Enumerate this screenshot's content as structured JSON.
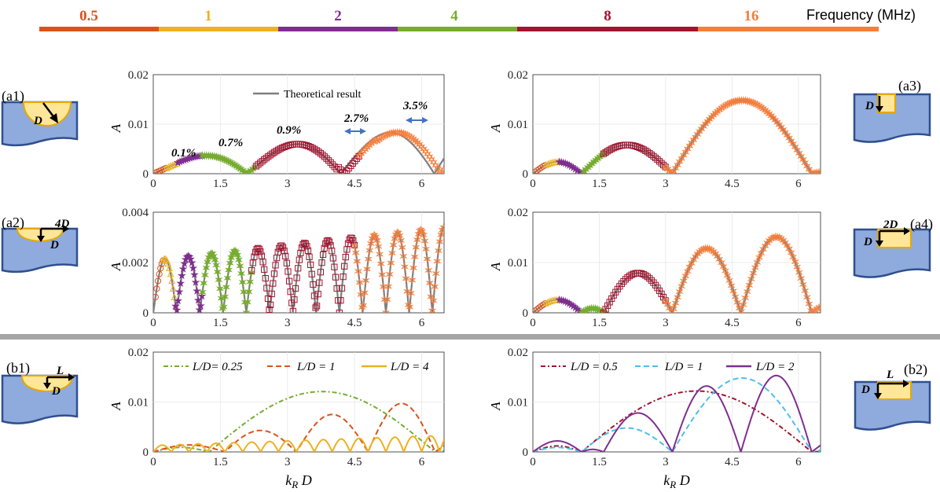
{
  "colors": {
    "f05": "#d9531e",
    "f1": "#edb120",
    "f2": "#7e2f8e",
    "f4": "#77ac30",
    "f8": "#a2142f",
    "f16": "#f47e3c",
    "theory": "#7f7f7f",
    "arrow": "#4472c4",
    "sample_fill": "#8faadc",
    "sample_edge": "#2f4f8f",
    "coat_fill": "#ffe699",
    "coat_edge": "#e6a800"
  },
  "frequency_bar": {
    "title": "Frequency (MHz)",
    "labels": [
      "0.5",
      "1",
      "2",
      "4",
      "8",
      "16"
    ]
  },
  "diagrams": {
    "a1": {
      "label": "(a1)",
      "dim": "D"
    },
    "a2": {
      "label": "(a2)",
      "dim1": "4D",
      "dim2": "D"
    },
    "a3": {
      "label": "(a3)",
      "dim": "D"
    },
    "a4": {
      "label": "(a4)",
      "dim1": "2D",
      "dim2": "D"
    },
    "b1": {
      "label": "(b1)",
      "dim1": "L",
      "dim2": "D"
    },
    "b2": {
      "label": "(b2)",
      "dim1": "L",
      "dim2": "D"
    }
  },
  "annotations_a1": {
    "legend_theory": "Theoretical result",
    "errors": [
      "0.1%",
      "0.7%",
      "0.9%",
      "2.7%",
      "3.5%"
    ]
  },
  "legends_b": {
    "b1": [
      "L/D= 0.25",
      "L/D = 1",
      "L/D = 4"
    ],
    "b2": [
      "L/D = 0.5",
      "L/D = 1",
      "L/D = 2"
    ]
  },
  "chart_data": [
    {
      "id": "a1",
      "type": "line",
      "xlabel": "",
      "ylabel": "A",
      "xlim": [
        0,
        6.5
      ],
      "ylim": [
        0,
        0.02
      ],
      "xticks": [
        "0",
        "1.5",
        "3",
        "4.5",
        "6"
      ],
      "yticks": [
        "0",
        "0.01",
        "0.02"
      ],
      "series": [
        {
          "name": "Theoretical result",
          "model": "abs_sin",
          "amp_start": 0.0024,
          "amp_end": 0.0097,
          "period": 2.094
        },
        {
          "freq": "0.5",
          "x": [
            0.05,
            0.3
          ],
          "marker": "circle"
        },
        {
          "freq": "1",
          "x": [
            0.3,
            0.55
          ],
          "marker": "triangle"
        },
        {
          "freq": "2",
          "x": [
            0.55,
            1.1
          ],
          "marker": "star"
        },
        {
          "freq": "4",
          "x": [
            1.1,
            2.3
          ],
          "marker": "star6"
        },
        {
          "freq": "8",
          "x": [
            2.3,
            4.6
          ],
          "marker": "square"
        },
        {
          "freq": "16",
          "x": [
            4.6,
            6.5
          ],
          "marker": "hexagram"
        }
      ]
    },
    {
      "id": "a2",
      "type": "line",
      "xlabel": "",
      "ylabel": "A",
      "xlim": [
        0,
        6.5
      ],
      "ylim": [
        0,
        0.004
      ],
      "xticks": [
        "0",
        "1.5",
        "3",
        "4.5",
        "6"
      ],
      "yticks": [
        "0",
        "0.002",
        "0.004"
      ],
      "series": [
        {
          "name": "Theoretical result",
          "model": "abs_sin",
          "amp_start": 0.0021,
          "amp_end": 0.0034,
          "period": 0.52
        },
        {
          "freq": "0.5",
          "x": [
            0.05,
            0.22
          ],
          "marker": "circle"
        },
        {
          "freq": "1",
          "x": [
            0.22,
            0.5
          ],
          "marker": "triangle"
        },
        {
          "freq": "2",
          "x": [
            0.5,
            1.1
          ],
          "marker": "star"
        },
        {
          "freq": "4",
          "x": [
            1.1,
            2.2
          ],
          "marker": "star6"
        },
        {
          "freq": "8",
          "x": [
            2.2,
            4.5
          ],
          "marker": "square"
        },
        {
          "freq": "16",
          "x": [
            4.5,
            6.5
          ],
          "marker": "hexagram"
        }
      ]
    },
    {
      "id": "a3",
      "type": "line",
      "xlabel": "",
      "ylabel": "A",
      "xlim": [
        0,
        6.5
      ],
      "ylim": [
        0,
        0.02
      ],
      "xticks": [
        "0",
        "1.5",
        "3",
        "4.5",
        "6"
      ],
      "yticks": [
        "0",
        "0.01",
        "0.02"
      ],
      "series": [
        {
          "name": "Theoretical result",
          "model": "lobes",
          "zeros": [
            0,
            1.1,
            3.15,
            6.3
          ],
          "peaks": [
            0.0024,
            0.0058,
            0.0148
          ],
          "extend": 0.0035
        },
        {
          "freq": "0.5",
          "x": [
            0.05,
            0.3
          ],
          "marker": "circle"
        },
        {
          "freq": "1",
          "x": [
            0.3,
            0.6
          ],
          "marker": "triangle"
        },
        {
          "freq": "2",
          "x": [
            0.6,
            1.15
          ],
          "marker": "star"
        },
        {
          "freq": "4",
          "x": [
            1.15,
            1.6
          ],
          "marker": "star6"
        },
        {
          "freq": "8",
          "x": [
            1.6,
            3.0
          ],
          "marker": "square"
        },
        {
          "freq": "16",
          "x": [
            3.0,
            6.5
          ],
          "marker": "hexagram"
        }
      ]
    },
    {
      "id": "a4",
      "type": "line",
      "xlabel": "",
      "ylabel": "A",
      "xlim": [
        0,
        6.5
      ],
      "ylim": [
        0,
        0.02
      ],
      "xticks": [
        "0",
        "1.5",
        "3",
        "4.5",
        "6"
      ],
      "yticks": [
        "0",
        "0.01",
        "0.02"
      ],
      "series": [
        {
          "name": "Theoretical result",
          "model": "lobes",
          "zeros": [
            0,
            1.1,
            1.6,
            3.15,
            4.7,
            6.3
          ],
          "peaks": [
            0.0026,
            0.0009,
            0.0079,
            0.0128,
            0.0151
          ],
          "extend": 0.0065
        },
        {
          "freq": "0.5",
          "x": [
            0.05,
            0.3
          ],
          "marker": "circle"
        },
        {
          "freq": "1",
          "x": [
            0.3,
            0.6
          ],
          "marker": "triangle"
        },
        {
          "freq": "2",
          "x": [
            0.6,
            1.1
          ],
          "marker": "star"
        },
        {
          "freq": "4",
          "x": [
            1.1,
            1.6
          ],
          "marker": "star6"
        },
        {
          "freq": "8",
          "x": [
            1.6,
            3.0
          ],
          "marker": "square"
        },
        {
          "freq": "16",
          "x": [
            3.0,
            6.5
          ],
          "marker": "hexagram"
        }
      ]
    },
    {
      "id": "b1",
      "type": "line",
      "xlabel": "k_R D",
      "ylabel": "A",
      "xlim": [
        0,
        6.5
      ],
      "ylim": [
        0,
        0.02
      ],
      "xticks": [
        "0",
        "1.5",
        "3",
        "4.5",
        "6"
      ],
      "yticks": [
        "0",
        "0.01",
        "0.02"
      ],
      "series": [
        {
          "name": "L/D= 0.25",
          "style": "dashdot",
          "color": "#77ac30",
          "model": "lobes",
          "zeros": [
            0,
            1.25,
            6.3
          ],
          "peaks": [
            0.0009,
            0.0121
          ],
          "extend": 0.0025
        },
        {
          "name": "L/D = 1",
          "style": "dash",
          "color": "#d9531e",
          "model": "lobes",
          "zeros": [
            0,
            1.6,
            3.2,
            4.8,
            6.3
          ],
          "peaks": [
            0.0014,
            0.0043,
            0.0075,
            0.0097
          ],
          "extend": 0.006
        },
        {
          "name": "L/D = 4",
          "style": "solid",
          "color": "#edb120",
          "model": "abs_sin",
          "amp_start": 0.0013,
          "amp_end": 0.0033,
          "period": 0.4
        }
      ]
    },
    {
      "id": "b2",
      "type": "line",
      "xlabel": "k_R D",
      "ylabel": "A",
      "xlim": [
        0,
        6.5
      ],
      "ylim": [
        0,
        0.02
      ],
      "xticks": [
        "0",
        "1.5",
        "3",
        "4.5",
        "6"
      ],
      "yticks": [
        "0",
        "0.01",
        "0.02"
      ],
      "series": [
        {
          "name": "L/D = 0.5",
          "style": "dashdot",
          "color": "#a2142f",
          "model": "lobes",
          "zeros": [
            0,
            1.1,
            6.3
          ],
          "peaks": [
            0.0012,
            0.0122
          ],
          "extend": 0.0015
        },
        {
          "name": "L/D = 1",
          "style": "dash",
          "color": "#4dbeee",
          "model": "lobes",
          "zeros": [
            0,
            1.1,
            3.15,
            6.3
          ],
          "peaks": [
            0.0009,
            0.0048,
            0.0148
          ],
          "extend": 0.0035
        },
        {
          "name": "L/D = 2",
          "style": "solid",
          "color": "#7e2f8e",
          "model": "lobes",
          "zeros": [
            0,
            1.1,
            1.6,
            3.15,
            4.7,
            6.3
          ],
          "peaks": [
            0.0022,
            0.0005,
            0.0078,
            0.0132,
            0.0153
          ],
          "extend": 0.0068
        }
      ]
    }
  ]
}
